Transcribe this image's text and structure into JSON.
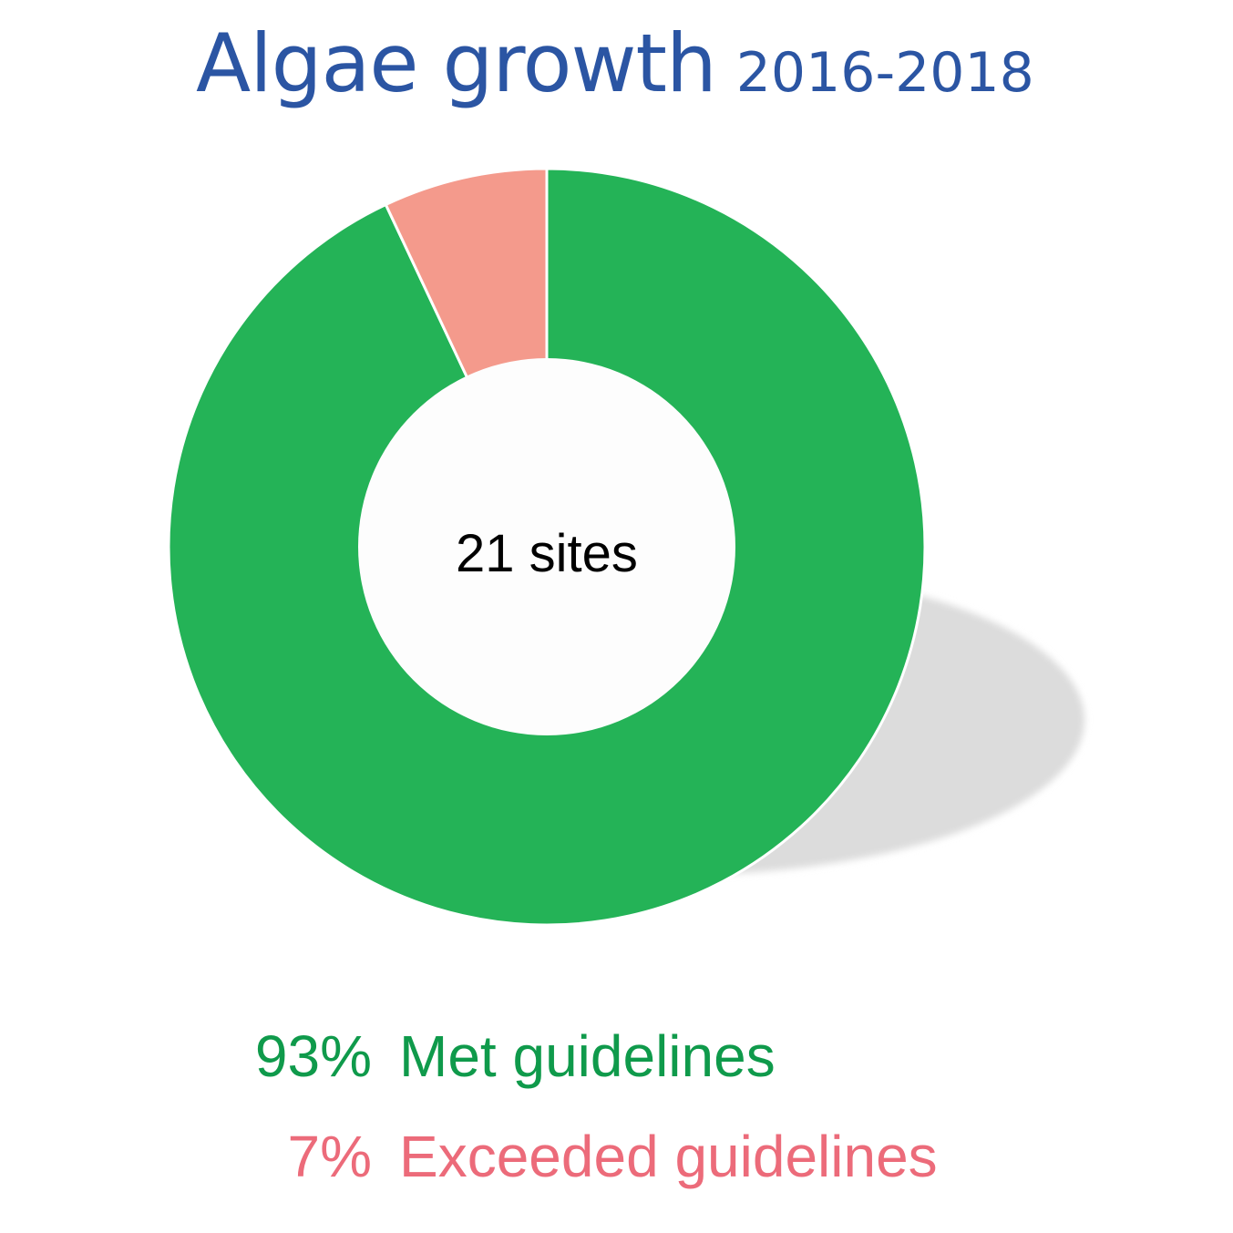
{
  "chart_data": {
    "type": "pie",
    "variant": "donut",
    "title": "Algae growth",
    "subtitle": "2016-2018",
    "center_label": "21 sites",
    "slices": [
      {
        "label": "Met guidelines",
        "value": 93,
        "display": "93%",
        "color": "#24b357",
        "text_color": "#0f9a4b"
      },
      {
        "label": "Exceeded guidelines",
        "value": 7,
        "display": "7%",
        "color": "#f49a8c",
        "text_color": "#ec6b7a"
      }
    ],
    "title_color": "#2b55a3",
    "legend_position": "bottom"
  }
}
